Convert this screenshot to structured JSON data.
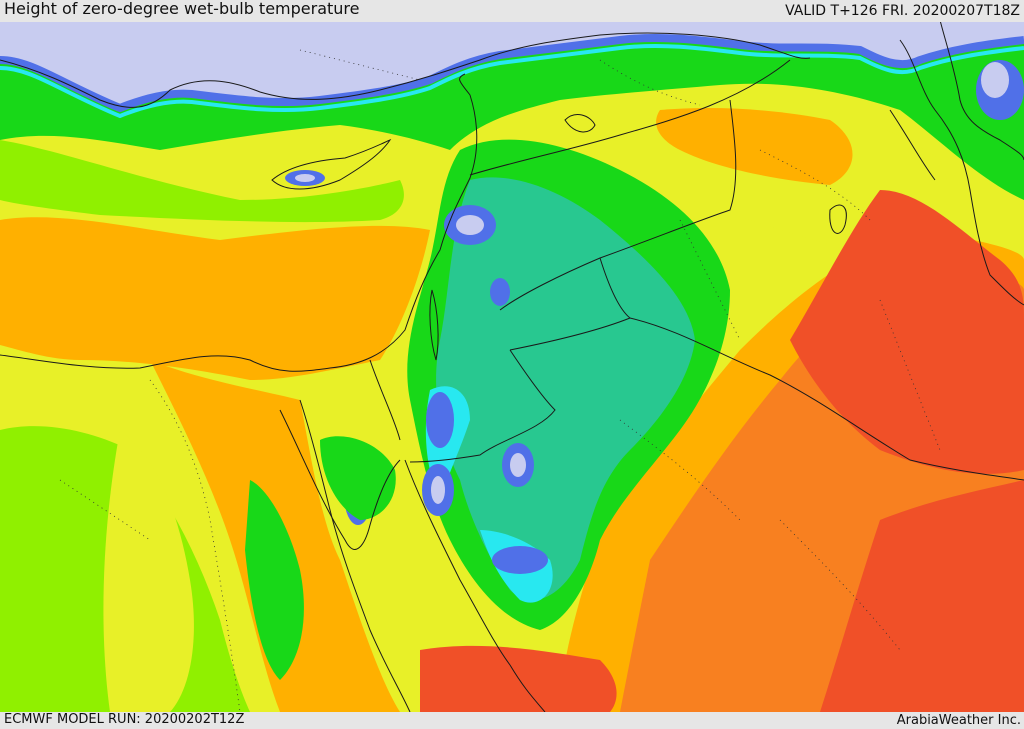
{
  "header": {
    "title": "Height of zero-degree wet-bulb temperature",
    "valid": "VALID T+126 FRI. 20200207T18Z"
  },
  "footer": {
    "model_run": "ECMWF MODEL RUN: 20200202T12Z",
    "credit": "ArabiaWeather Inc."
  },
  "colors": {
    "periwinkle": "#c8ccf0",
    "blue": "#5070e8",
    "deep_blue": "#3850d0",
    "cyan": "#28e8f0",
    "teal": "#28c890",
    "green": "#18d818",
    "lime": "#90f000",
    "yellow": "#e8f028",
    "orange": "#ffb000",
    "dark_orange": "#f88020",
    "red": "#f05028"
  }
}
